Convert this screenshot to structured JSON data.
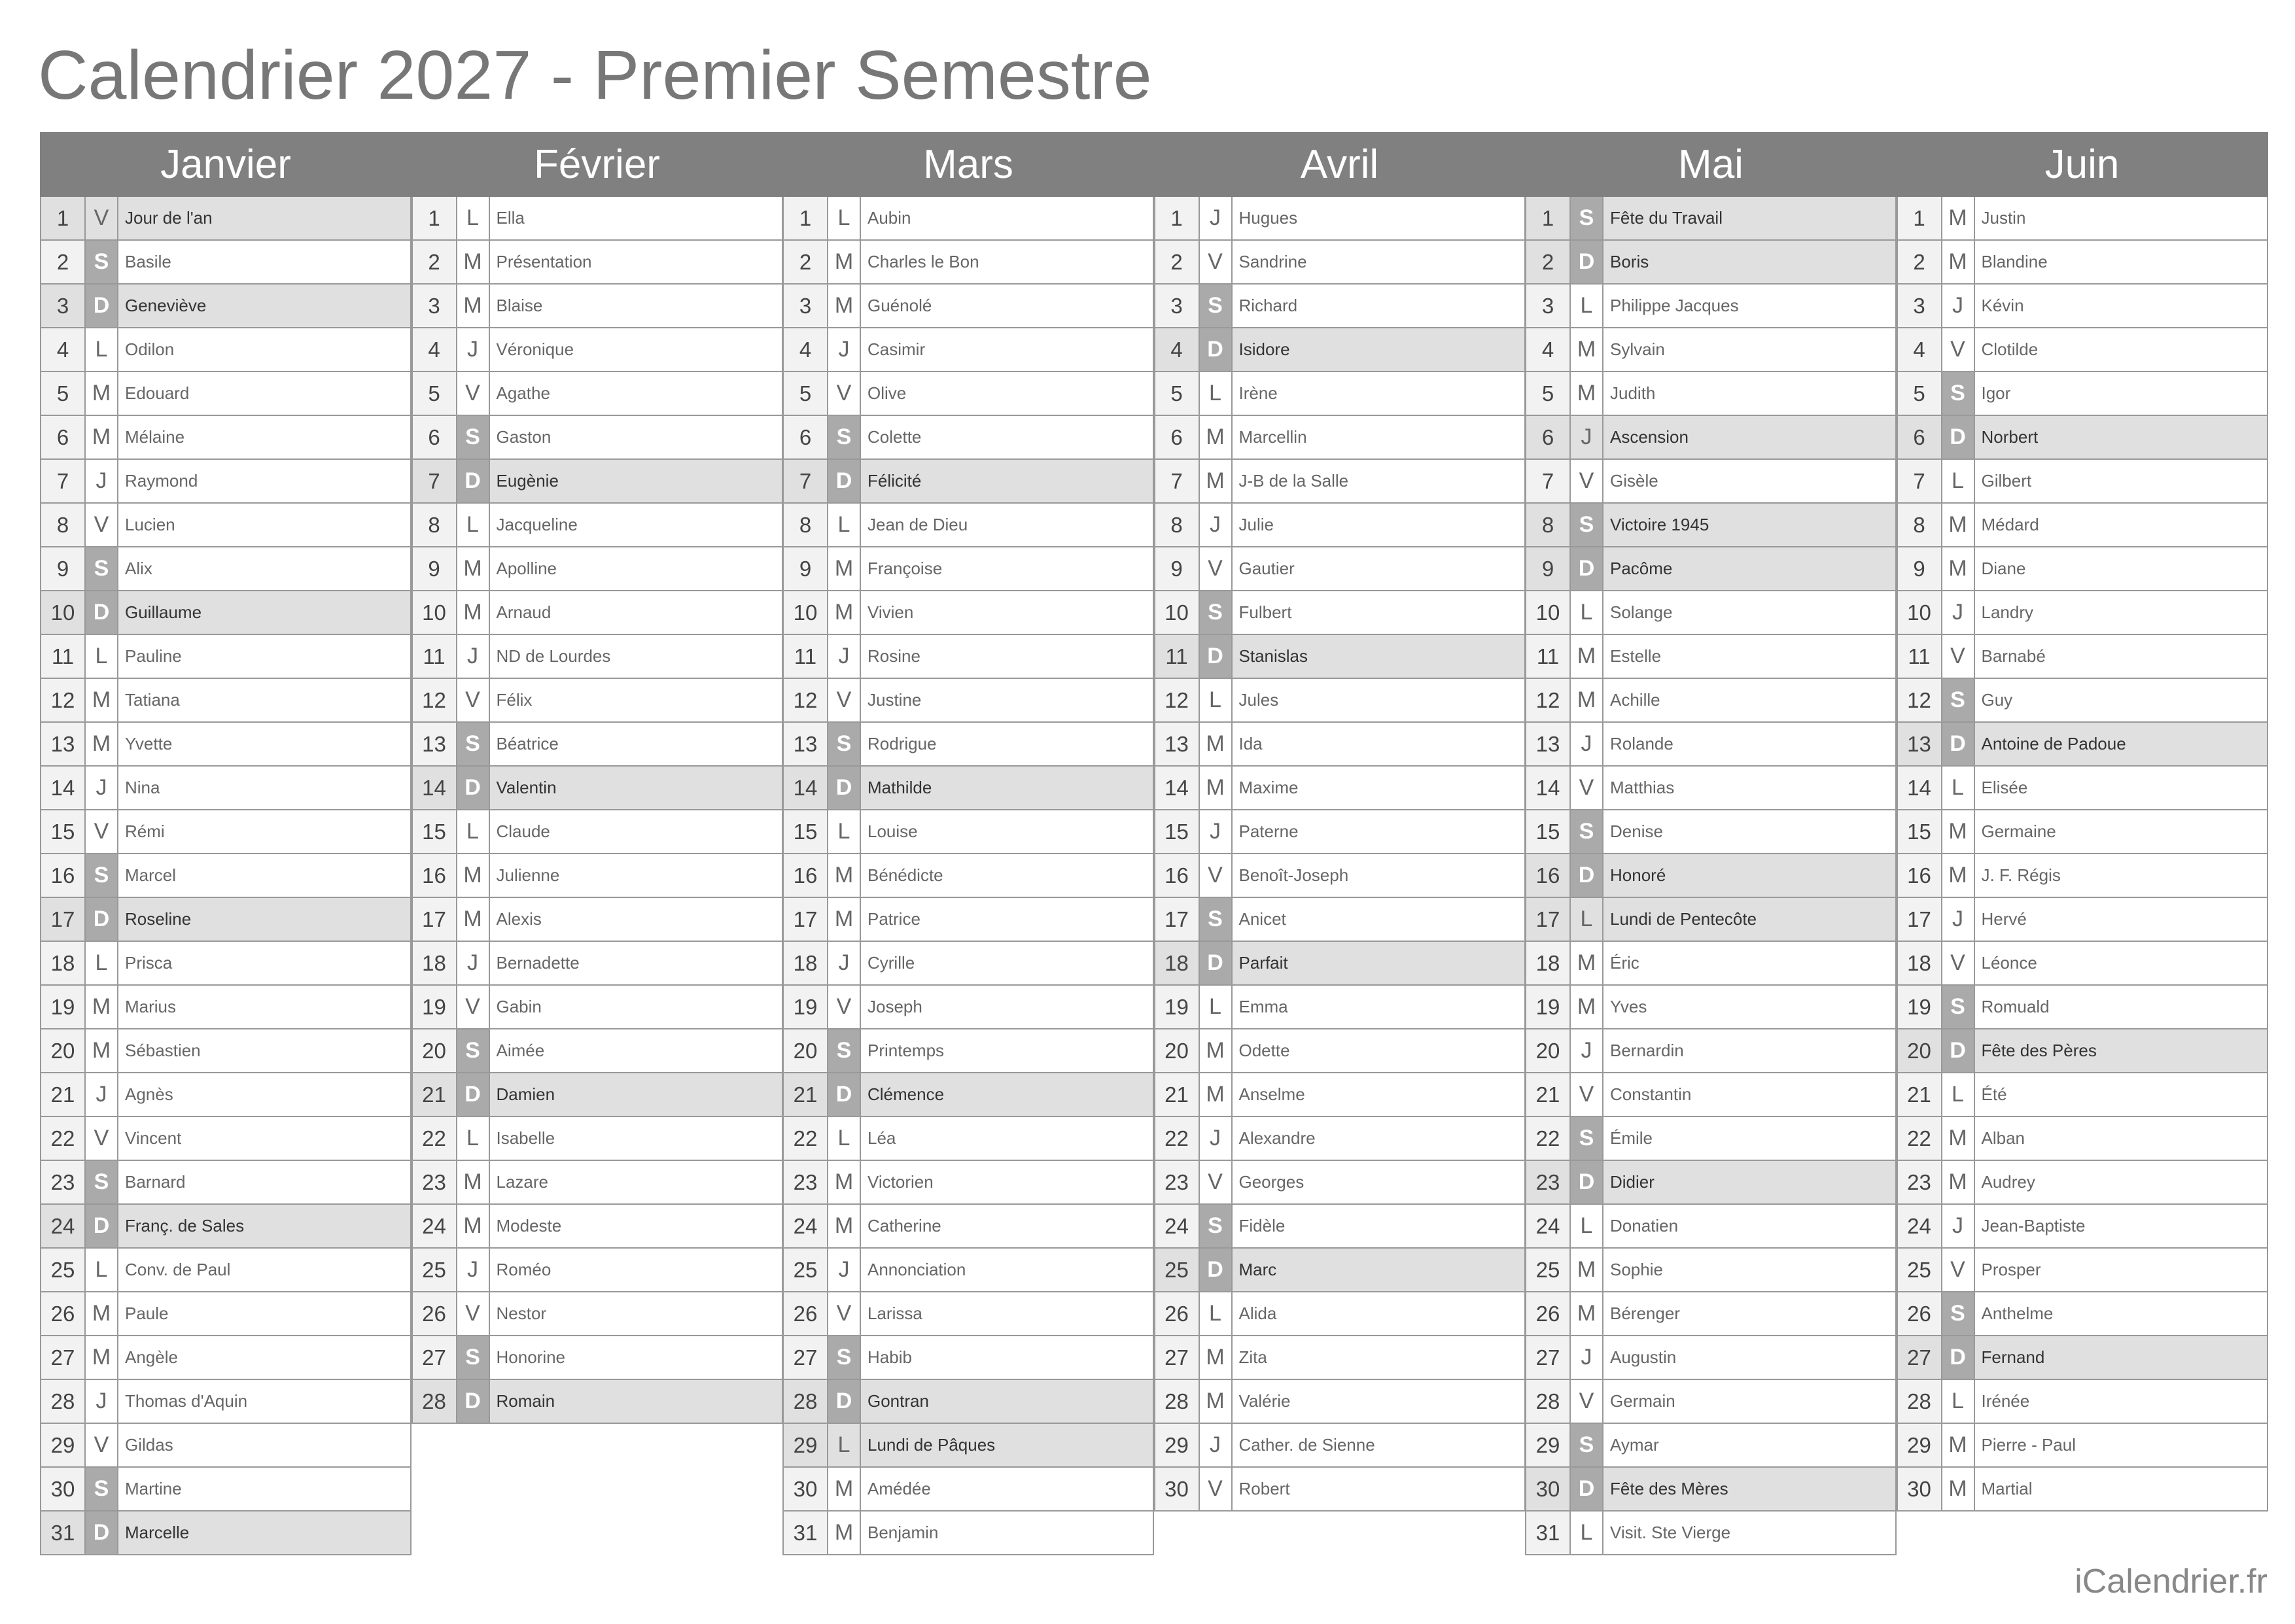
{
  "title": "Calendrier 2027 - Premier Semestre",
  "footer": "iCalendrier.fr",
  "colors": {
    "header_bg": "#808080",
    "weekend_letter_bg": "#aaaaaa",
    "highlight_row_bg": "#e0e0e0",
    "number_cell_bg": "#f2f2f2"
  },
  "months": [
    {
      "name": "Janvier",
      "days": [
        [
          1,
          "V",
          "Jour de l'an",
          1
        ],
        [
          2,
          "S",
          "Basile",
          0
        ],
        [
          3,
          "D",
          "Geneviève",
          0
        ],
        [
          4,
          "L",
          "Odilon",
          0
        ],
        [
          5,
          "M",
          "Edouard",
          0
        ],
        [
          6,
          "M",
          "Mélaine",
          0
        ],
        [
          7,
          "J",
          "Raymond",
          0
        ],
        [
          8,
          "V",
          "Lucien",
          0
        ],
        [
          9,
          "S",
          "Alix",
          0
        ],
        [
          10,
          "D",
          "Guillaume",
          0
        ],
        [
          11,
          "L",
          "Pauline",
          0
        ],
        [
          12,
          "M",
          "Tatiana",
          0
        ],
        [
          13,
          "M",
          "Yvette",
          0
        ],
        [
          14,
          "J",
          "Nina",
          0
        ],
        [
          15,
          "V",
          "Rémi",
          0
        ],
        [
          16,
          "S",
          "Marcel",
          0
        ],
        [
          17,
          "D",
          "Roseline",
          0
        ],
        [
          18,
          "L",
          "Prisca",
          0
        ],
        [
          19,
          "M",
          "Marius",
          0
        ],
        [
          20,
          "M",
          "Sébastien",
          0
        ],
        [
          21,
          "J",
          "Agnès",
          0
        ],
        [
          22,
          "V",
          "Vincent",
          0
        ],
        [
          23,
          "S",
          "Barnard",
          0
        ],
        [
          24,
          "D",
          "Franç. de Sales",
          0
        ],
        [
          25,
          "L",
          "Conv. de Paul",
          0
        ],
        [
          26,
          "M",
          "Paule",
          0
        ],
        [
          27,
          "M",
          "Angèle",
          0
        ],
        [
          28,
          "J",
          "Thomas d'Aquin",
          0
        ],
        [
          29,
          "V",
          "Gildas",
          0
        ],
        [
          30,
          "S",
          "Martine",
          0
        ],
        [
          31,
          "D",
          "Marcelle",
          0
        ]
      ]
    },
    {
      "name": "Février",
      "days": [
        [
          1,
          "L",
          "Ella",
          0
        ],
        [
          2,
          "M",
          "Présentation",
          0
        ],
        [
          3,
          "M",
          "Blaise",
          0
        ],
        [
          4,
          "J",
          "Véronique",
          0
        ],
        [
          5,
          "V",
          "Agathe",
          0
        ],
        [
          6,
          "S",
          "Gaston",
          0
        ],
        [
          7,
          "D",
          "Eugènie",
          0
        ],
        [
          8,
          "L",
          "Jacqueline",
          0
        ],
        [
          9,
          "M",
          "Apolline",
          0
        ],
        [
          10,
          "M",
          "Arnaud",
          0
        ],
        [
          11,
          "J",
          "ND de Lourdes",
          0
        ],
        [
          12,
          "V",
          "Félix",
          0
        ],
        [
          13,
          "S",
          "Béatrice",
          0
        ],
        [
          14,
          "D",
          "Valentin",
          0
        ],
        [
          15,
          "L",
          "Claude",
          0
        ],
        [
          16,
          "M",
          "Julienne",
          0
        ],
        [
          17,
          "M",
          "Alexis",
          0
        ],
        [
          18,
          "J",
          "Bernadette",
          0
        ],
        [
          19,
          "V",
          "Gabin",
          0
        ],
        [
          20,
          "S",
          "Aimée",
          0
        ],
        [
          21,
          "D",
          "Damien",
          0
        ],
        [
          22,
          "L",
          "Isabelle",
          0
        ],
        [
          23,
          "M",
          "Lazare",
          0
        ],
        [
          24,
          "M",
          "Modeste",
          0
        ],
        [
          25,
          "J",
          "Roméo",
          0
        ],
        [
          26,
          "V",
          "Nestor",
          0
        ],
        [
          27,
          "S",
          "Honorine",
          0
        ],
        [
          28,
          "D",
          "Romain",
          0
        ]
      ]
    },
    {
      "name": "Mars",
      "days": [
        [
          1,
          "L",
          "Aubin",
          0
        ],
        [
          2,
          "M",
          "Charles le Bon",
          0
        ],
        [
          3,
          "M",
          "Guénolé",
          0
        ],
        [
          4,
          "J",
          "Casimir",
          0
        ],
        [
          5,
          "V",
          "Olive",
          0
        ],
        [
          6,
          "S",
          "Colette",
          0
        ],
        [
          7,
          "D",
          "Félicité",
          0
        ],
        [
          8,
          "L",
          "Jean de Dieu",
          0
        ],
        [
          9,
          "M",
          "Françoise",
          0
        ],
        [
          10,
          "M",
          "Vivien",
          0
        ],
        [
          11,
          "J",
          "Rosine",
          0
        ],
        [
          12,
          "V",
          "Justine",
          0
        ],
        [
          13,
          "S",
          "Rodrigue",
          0
        ],
        [
          14,
          "D",
          "Mathilde",
          0
        ],
        [
          15,
          "L",
          "Louise",
          0
        ],
        [
          16,
          "M",
          "Bénédicte",
          0
        ],
        [
          17,
          "M",
          "Patrice",
          0
        ],
        [
          18,
          "J",
          "Cyrille",
          0
        ],
        [
          19,
          "V",
          "Joseph",
          0
        ],
        [
          20,
          "S",
          "Printemps",
          0
        ],
        [
          21,
          "D",
          "Clémence",
          0
        ],
        [
          22,
          "L",
          "Léa",
          0
        ],
        [
          23,
          "M",
          "Victorien",
          0
        ],
        [
          24,
          "M",
          "Catherine",
          0
        ],
        [
          25,
          "J",
          "Annonciation",
          0
        ],
        [
          26,
          "V",
          "Larissa",
          0
        ],
        [
          27,
          "S",
          "Habib",
          0
        ],
        [
          28,
          "D",
          "Gontran",
          0
        ],
        [
          29,
          "L",
          "Lundi de Pâques",
          1
        ],
        [
          30,
          "M",
          "Amédée",
          0
        ],
        [
          31,
          "M",
          "Benjamin",
          0
        ]
      ]
    },
    {
      "name": "Avril",
      "days": [
        [
          1,
          "J",
          "Hugues",
          0
        ],
        [
          2,
          "V",
          "Sandrine",
          0
        ],
        [
          3,
          "S",
          "Richard",
          0
        ],
        [
          4,
          "D",
          "Isidore",
          0
        ],
        [
          5,
          "L",
          "Irène",
          0
        ],
        [
          6,
          "M",
          "Marcellin",
          0
        ],
        [
          7,
          "M",
          "J-B de la Salle",
          0
        ],
        [
          8,
          "J",
          "Julie",
          0
        ],
        [
          9,
          "V",
          "Gautier",
          0
        ],
        [
          10,
          "S",
          "Fulbert",
          0
        ],
        [
          11,
          "D",
          "Stanislas",
          0
        ],
        [
          12,
          "L",
          "Jules",
          0
        ],
        [
          13,
          "M",
          "Ida",
          0
        ],
        [
          14,
          "M",
          "Maxime",
          0
        ],
        [
          15,
          "J",
          "Paterne",
          0
        ],
        [
          16,
          "V",
          "Benoît-Joseph",
          0
        ],
        [
          17,
          "S",
          "Anicet",
          0
        ],
        [
          18,
          "D",
          "Parfait",
          0
        ],
        [
          19,
          "L",
          "Emma",
          0
        ],
        [
          20,
          "M",
          "Odette",
          0
        ],
        [
          21,
          "M",
          "Anselme",
          0
        ],
        [
          22,
          "J",
          "Alexandre",
          0
        ],
        [
          23,
          "V",
          "Georges",
          0
        ],
        [
          24,
          "S",
          "Fidèle",
          0
        ],
        [
          25,
          "D",
          "Marc",
          0
        ],
        [
          26,
          "L",
          "Alida",
          0
        ],
        [
          27,
          "M",
          "Zita",
          0
        ],
        [
          28,
          "M",
          "Valérie",
          0
        ],
        [
          29,
          "J",
          "Cather. de Sienne",
          0
        ],
        [
          30,
          "V",
          "Robert",
          0
        ]
      ]
    },
    {
      "name": "Mai",
      "days": [
        [
          1,
          "S",
          "Fête du Travail",
          1
        ],
        [
          2,
          "D",
          "Boris",
          0
        ],
        [
          3,
          "L",
          "Philippe Jacques",
          0
        ],
        [
          4,
          "M",
          "Sylvain",
          0
        ],
        [
          5,
          "M",
          "Judith",
          0
        ],
        [
          6,
          "J",
          "Ascension",
          1
        ],
        [
          7,
          "V",
          "Gisèle",
          0
        ],
        [
          8,
          "S",
          "Victoire 1945",
          1
        ],
        [
          9,
          "D",
          "Pacôme",
          0
        ],
        [
          10,
          "L",
          "Solange",
          0
        ],
        [
          11,
          "M",
          "Estelle",
          0
        ],
        [
          12,
          "M",
          "Achille",
          0
        ],
        [
          13,
          "J",
          "Rolande",
          0
        ],
        [
          14,
          "V",
          "Matthias",
          0
        ],
        [
          15,
          "S",
          "Denise",
          0
        ],
        [
          16,
          "D",
          "Honoré",
          0
        ],
        [
          17,
          "L",
          "Lundi de Pentecôte",
          1
        ],
        [
          18,
          "M",
          "Éric",
          0
        ],
        [
          19,
          "M",
          "Yves",
          0
        ],
        [
          20,
          "J",
          "Bernardin",
          0
        ],
        [
          21,
          "V",
          "Constantin",
          0
        ],
        [
          22,
          "S",
          "Émile",
          0
        ],
        [
          23,
          "D",
          "Didier",
          0
        ],
        [
          24,
          "L",
          "Donatien",
          0
        ],
        [
          25,
          "M",
          "Sophie",
          0
        ],
        [
          26,
          "M",
          "Bérenger",
          0
        ],
        [
          27,
          "J",
          "Augustin",
          0
        ],
        [
          28,
          "V",
          "Germain",
          0
        ],
        [
          29,
          "S",
          "Aymar",
          0
        ],
        [
          30,
          "D",
          "Fête des Mères",
          0
        ],
        [
          31,
          "L",
          "Visit. Ste Vierge",
          0
        ]
      ]
    },
    {
      "name": "Juin",
      "days": [
        [
          1,
          "M",
          "Justin",
          0
        ],
        [
          2,
          "M",
          "Blandine",
          0
        ],
        [
          3,
          "J",
          "Kévin",
          0
        ],
        [
          4,
          "V",
          "Clotilde",
          0
        ],
        [
          5,
          "S",
          "Igor",
          0
        ],
        [
          6,
          "D",
          "Norbert",
          0
        ],
        [
          7,
          "L",
          "Gilbert",
          0
        ],
        [
          8,
          "M",
          "Médard",
          0
        ],
        [
          9,
          "M",
          "Diane",
          0
        ],
        [
          10,
          "J",
          "Landry",
          0
        ],
        [
          11,
          "V",
          "Barnabé",
          0
        ],
        [
          12,
          "S",
          "Guy",
          0
        ],
        [
          13,
          "D",
          "Antoine de Padoue",
          0
        ],
        [
          14,
          "L",
          "Elisée",
          0
        ],
        [
          15,
          "M",
          "Germaine",
          0
        ],
        [
          16,
          "M",
          "J. F. Régis",
          0
        ],
        [
          17,
          "J",
          "Hervé",
          0
        ],
        [
          18,
          "V",
          "Léonce",
          0
        ],
        [
          19,
          "S",
          "Romuald",
          0
        ],
        [
          20,
          "D",
          "Fête des Pères",
          0
        ],
        [
          21,
          "L",
          "Été",
          0
        ],
        [
          22,
          "M",
          "Alban",
          0
        ],
        [
          23,
          "M",
          "Audrey",
          0
        ],
        [
          24,
          "J",
          "Jean-Baptiste",
          0
        ],
        [
          25,
          "V",
          "Prosper",
          0
        ],
        [
          26,
          "S",
          "Anthelme",
          0
        ],
        [
          27,
          "D",
          "Fernand",
          0
        ],
        [
          28,
          "L",
          "Irénée",
          0
        ],
        [
          29,
          "M",
          "Pierre - Paul",
          0
        ],
        [
          30,
          "M",
          "Martial",
          0
        ]
      ]
    }
  ]
}
